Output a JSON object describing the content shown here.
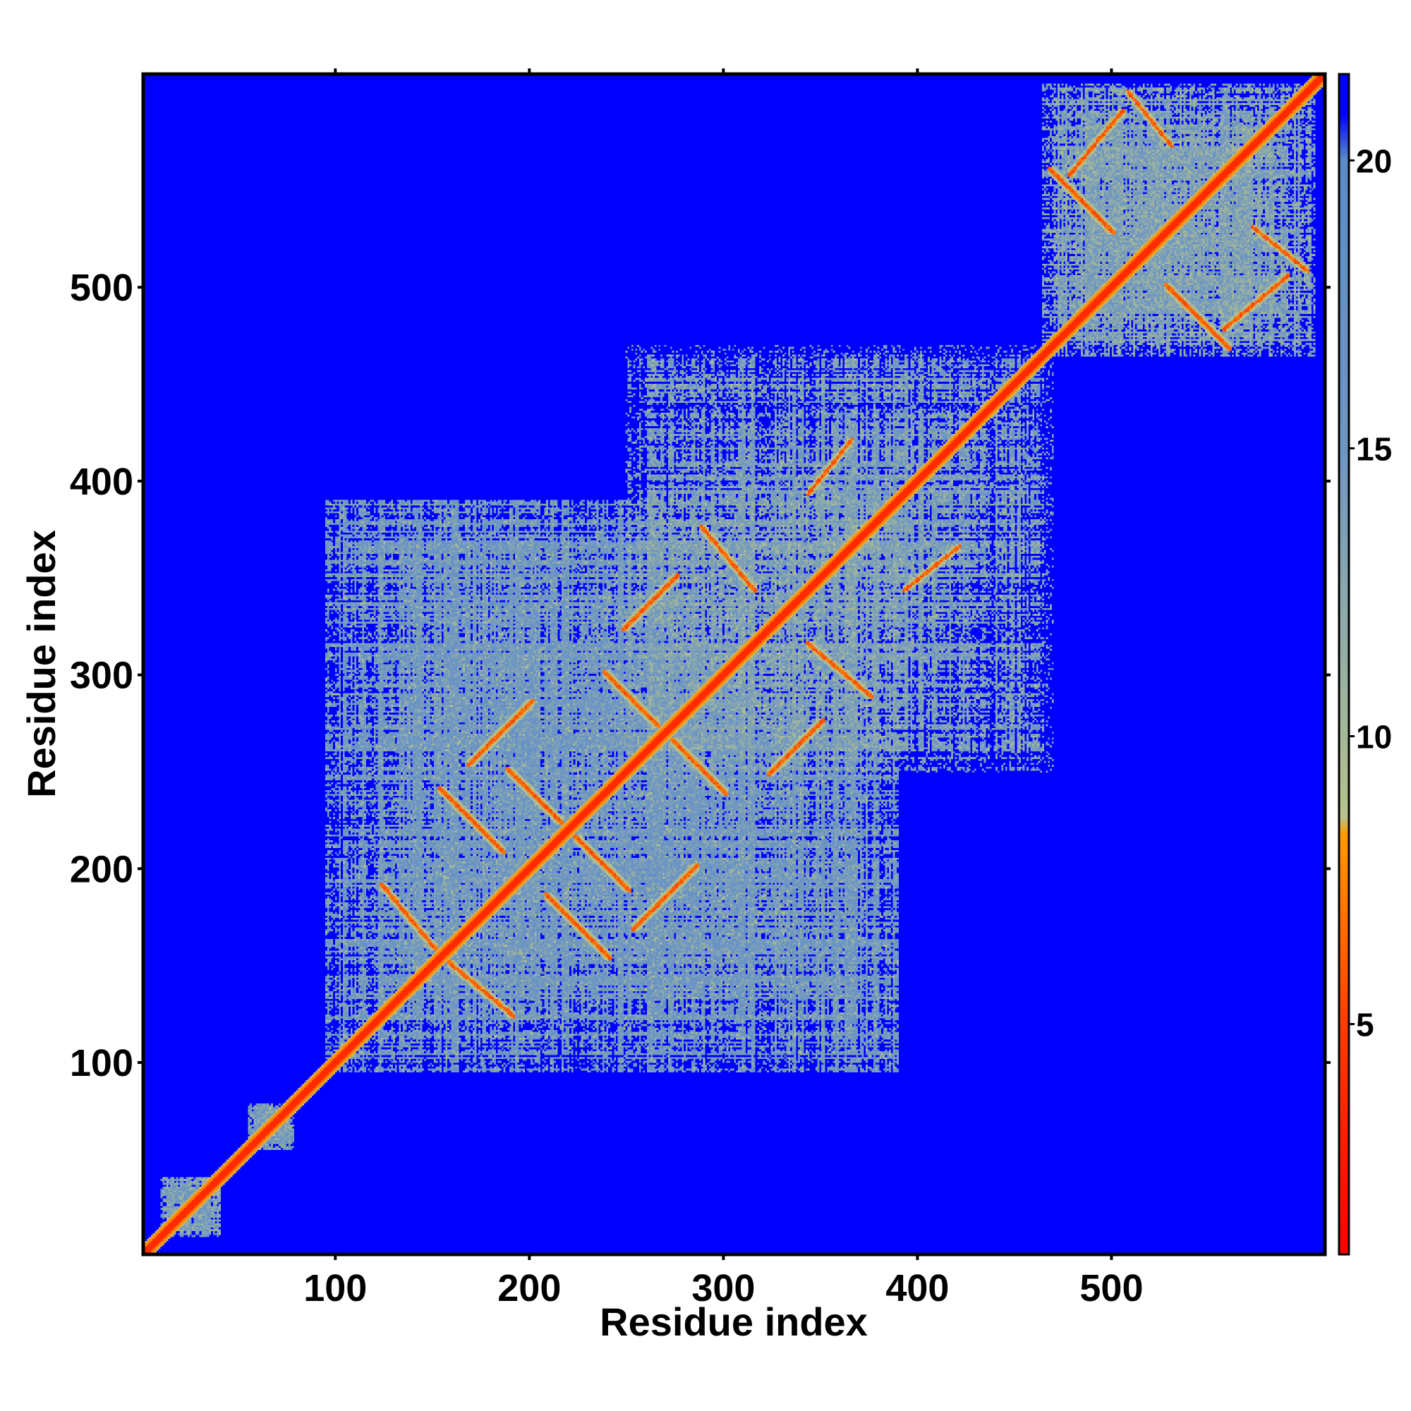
{
  "chart_data": {
    "type": "heatmap",
    "title": "",
    "xlabel": "Residue index",
    "ylabel": "Residue index",
    "xlim": [
      1,
      610
    ],
    "ylim": [
      1,
      610
    ],
    "x_ticks": [
      100,
      200,
      300,
      400,
      500
    ],
    "y_ticks": [
      100,
      200,
      300,
      400,
      500
    ],
    "colorbar": {
      "range": [
        1,
        21.5
      ],
      "ticks": [
        5,
        10,
        15,
        20
      ],
      "colors": {
        "contact": "#ff0000",
        "near": "#ff8c00",
        "medium": "#c8c878",
        "far": "#5b8cc8",
        "none": "#0000ff"
      },
      "stops": [
        {
          "value": 1,
          "color": "#ff0000"
        },
        {
          "value": 5,
          "color": "#ff3c00"
        },
        {
          "value": 8.3,
          "color": "#ff9a00"
        },
        {
          "value": 8.6,
          "color": "#b8c48c"
        },
        {
          "value": 10,
          "color": "#a4b898"
        },
        {
          "value": 15,
          "color": "#6e96c4"
        },
        {
          "value": 20,
          "color": "#5b8cc8"
        },
        {
          "value": 20.8,
          "color": "#0000ff"
        }
      ]
    },
    "background_value": 21.5,
    "diagonal_value": 3.8,
    "domains": [
      {
        "name": "d1",
        "range": [
          95,
          390
        ],
        "fill": 15,
        "density": 0.78
      },
      {
        "name": "d2",
        "range": [
          250,
          470
        ],
        "fill": 14,
        "density": 0.6
      },
      {
        "name": "d3",
        "range": [
          465,
          605
        ],
        "fill": 13.5,
        "density": 0.82
      },
      {
        "name": "n-term-a",
        "range": [
          10,
          40
        ],
        "fill": 14,
        "density": 0.9
      },
      {
        "name": "n-term-b",
        "range": [
          55,
          78
        ],
        "fill": 14,
        "density": 0.9
      }
    ],
    "contact_features": [
      {
        "type": "antiparallel",
        "i": [
          155,
          185
        ],
        "j": [
          210,
          240
        ]
      },
      {
        "type": "antiparallel",
        "i": [
          190,
          215
        ],
        "j": [
          225,
          250
        ]
      },
      {
        "type": "parallel",
        "i": [
          170,
          200
        ],
        "j": [
          255,
          285
        ]
      },
      {
        "type": "antiparallel",
        "i": [
          240,
          265
        ],
        "j": [
          275,
          300
        ]
      },
      {
        "type": "antiparallel",
        "i": [
          125,
          150
        ],
        "j": [
          160,
          190
        ]
      },
      {
        "type": "parallel",
        "i": [
          250,
          275
        ],
        "j": [
          325,
          350
        ]
      },
      {
        "type": "antiparallel",
        "i": [
          290,
          315
        ],
        "j": [
          345,
          375
        ]
      },
      {
        "type": "parallel",
        "i": [
          345,
          365
        ],
        "j": [
          395,
          420
        ]
      },
      {
        "type": "antiparallel",
        "i": [
          470,
          500
        ],
        "j": [
          530,
          560
        ]
      },
      {
        "type": "parallel",
        "i": [
          480,
          505
        ],
        "j": [
          560,
          590
        ]
      },
      {
        "type": "antiparallel",
        "i": [
          510,
          530
        ],
        "j": [
          575,
          600
        ]
      }
    ]
  }
}
